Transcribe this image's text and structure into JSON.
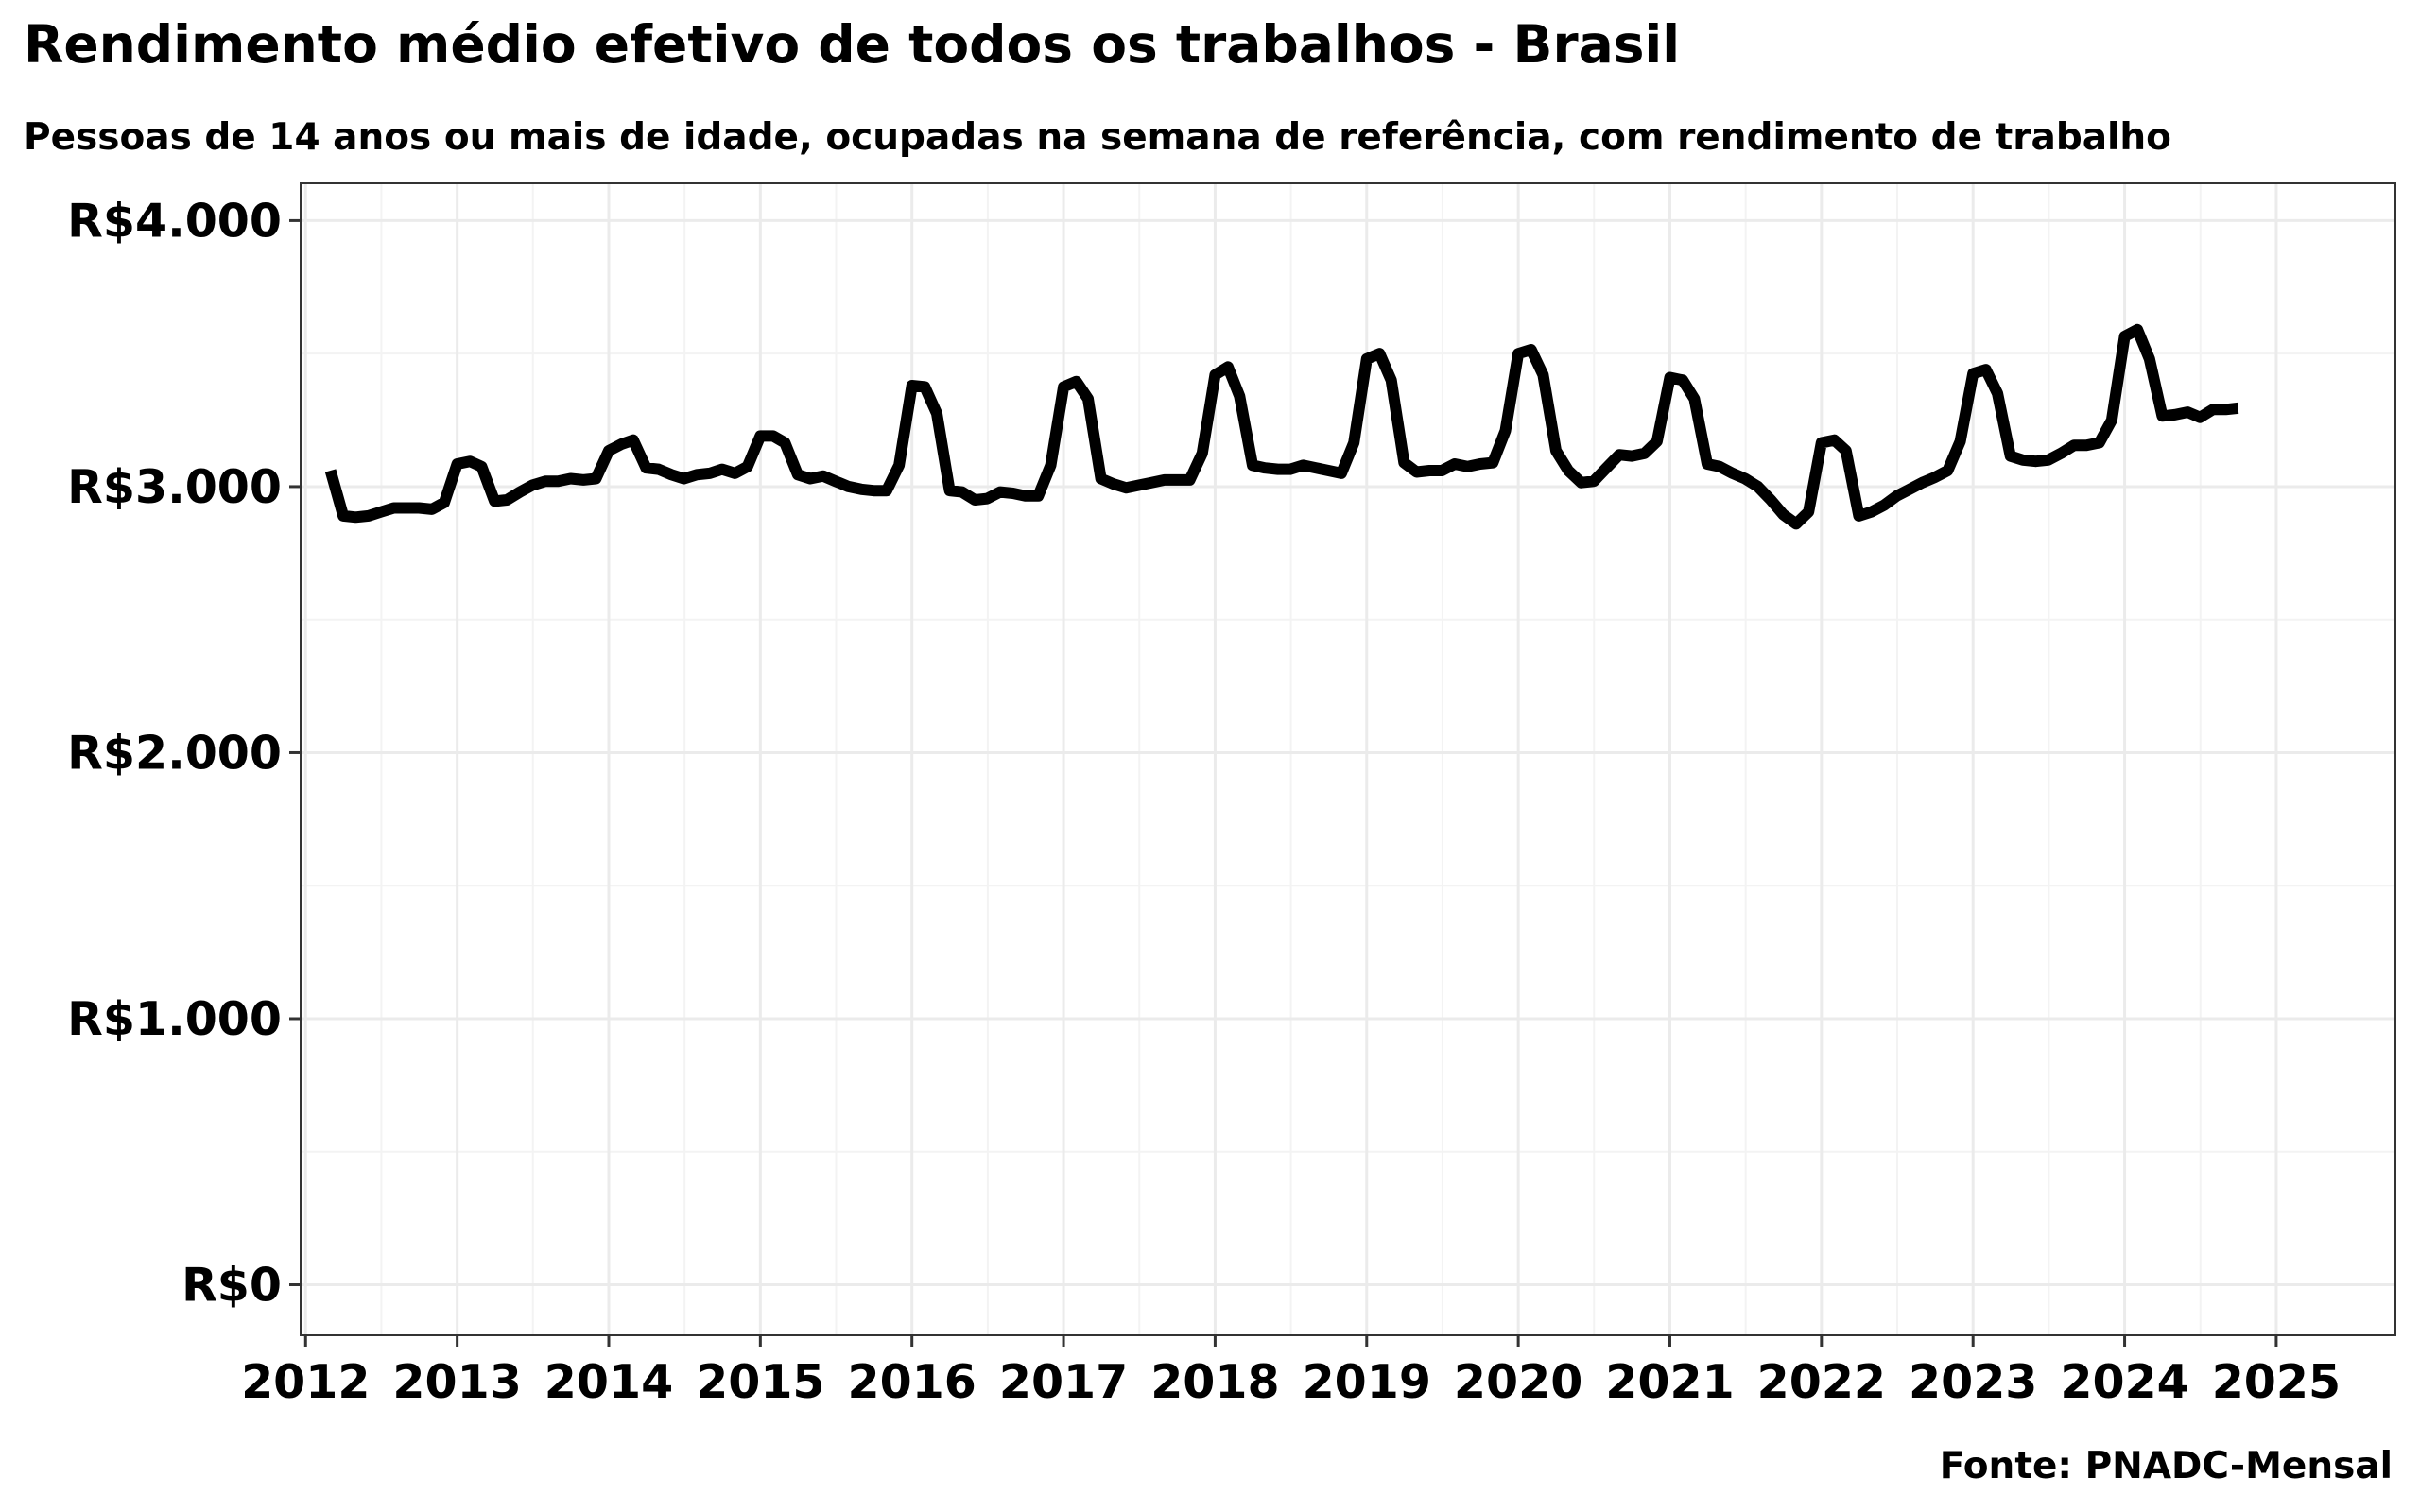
{
  "chart_data": {
    "type": "line",
    "title": "Rendimento médio efetivo de todos os trabalhos - Brasil",
    "subtitle": "Pessoas de 14 anos ou mais de idade, ocupadas na semana de referência, com rendimento de trabalho",
    "caption": "Fonte: PNADC-Mensal",
    "xlabel": "",
    "ylabel": "",
    "x_ticks": [
      "2012",
      "2013",
      "2014",
      "2015",
      "2016",
      "2017",
      "2018",
      "2019",
      "2020",
      "2021",
      "2022",
      "2023",
      "2024",
      "2025"
    ],
    "y_ticks": [
      "R$0",
      "R$1.000",
      "R$2.000",
      "R$3.000",
      "R$4.000"
    ],
    "y_tick_values": [
      0,
      1000,
      2000,
      3000,
      4000
    ],
    "xlim": [
      "2011-12-20",
      "2025-10-15"
    ],
    "ylim": [
      -190,
      4140
    ],
    "grid": true,
    "line_color": "#000000",
    "series": [
      {
        "x": [
          "2012-03",
          "2012-04",
          "2012-05",
          "2012-06",
          "2012-07",
          "2012-08",
          "2012-09",
          "2012-10",
          "2012-11",
          "2012-12",
          "2013-01",
          "2013-02",
          "2013-03",
          "2013-04",
          "2013-05",
          "2013-06",
          "2013-07",
          "2013-08",
          "2013-09",
          "2013-10",
          "2013-11",
          "2013-12",
          "2014-01",
          "2014-02",
          "2014-03",
          "2014-04",
          "2014-05",
          "2014-06",
          "2014-07",
          "2014-08",
          "2014-09",
          "2014-10",
          "2014-11",
          "2014-12",
          "2015-01",
          "2015-02",
          "2015-03",
          "2015-04",
          "2015-05",
          "2015-06",
          "2015-07",
          "2015-08",
          "2015-09",
          "2015-10",
          "2015-11",
          "2015-12",
          "2016-01",
          "2016-02",
          "2016-03",
          "2016-04",
          "2016-05",
          "2016-06",
          "2016-07",
          "2016-08",
          "2016-09",
          "2016-10",
          "2016-11",
          "2016-12",
          "2017-01",
          "2017-02",
          "2017-03",
          "2017-04",
          "2017-05",
          "2017-06",
          "2017-07",
          "2017-08",
          "2017-09",
          "2017-10",
          "2017-11",
          "2017-12",
          "2018-01",
          "2018-02",
          "2018-03",
          "2018-04",
          "2018-05",
          "2018-06",
          "2018-07",
          "2018-08",
          "2018-09",
          "2018-10",
          "2018-11",
          "2018-12",
          "2019-01",
          "2019-02",
          "2019-03",
          "2019-04",
          "2019-05",
          "2019-06",
          "2019-07",
          "2019-08",
          "2019-09",
          "2019-10",
          "2019-11",
          "2019-12",
          "2020-01",
          "2020-02",
          "2020-03",
          "2020-04",
          "2020-05",
          "2020-06",
          "2020-07",
          "2020-08",
          "2020-09",
          "2020-10",
          "2020-11",
          "2020-12",
          "2021-01",
          "2021-02",
          "2021-03",
          "2021-04",
          "2021-05",
          "2021-06",
          "2021-07",
          "2021-08",
          "2021-09",
          "2021-10",
          "2021-11",
          "2021-12",
          "2022-01",
          "2022-02",
          "2022-03",
          "2022-04",
          "2022-05",
          "2022-06",
          "2022-07",
          "2022-08",
          "2022-09",
          "2022-10",
          "2022-11",
          "2022-12",
          "2023-01",
          "2023-02",
          "2023-03",
          "2023-04",
          "2023-05",
          "2023-06",
          "2023-07",
          "2023-08",
          "2023-09",
          "2023-10",
          "2023-11",
          "2023-12",
          "2024-01",
          "2024-02",
          "2024-03",
          "2024-04",
          "2024-05",
          "2024-06",
          "2024-07",
          "2024-08",
          "2024-09",
          "2024-10"
        ],
        "values": [
          3060,
          2890,
          2885,
          2890,
          2905,
          2920,
          2920,
          2920,
          2915,
          2940,
          3085,
          3095,
          3075,
          2945,
          2950,
          2980,
          3005,
          3020,
          3020,
          3030,
          3025,
          3030,
          3135,
          3160,
          3175,
          3070,
          3065,
          3045,
          3030,
          3045,
          3050,
          3065,
          3050,
          3075,
          3190,
          3190,
          3165,
          3045,
          3030,
          3040,
          3020,
          3000,
          2990,
          2985,
          2985,
          3080,
          3380,
          3375,
          3275,
          2985,
          2980,
          2950,
          2955,
          2980,
          2975,
          2965,
          2965,
          3080,
          3375,
          3395,
          3330,
          3030,
          3010,
          2995,
          3005,
          3015,
          3025,
          3025,
          3025,
          3125,
          3420,
          3450,
          3340,
          3080,
          3070,
          3065,
          3065,
          3080,
          3070,
          3060,
          3050,
          3165,
          3480,
          3500,
          3400,
          3090,
          3055,
          3060,
          3060,
          3085,
          3075,
          3085,
          3090,
          3210,
          3500,
          3515,
          3420,
          3135,
          3060,
          3015,
          3020,
          3070,
          3120,
          3115,
          3125,
          3170,
          3410,
          3400,
          3330,
          3085,
          3075,
          3050,
          3030,
          3000,
          2950,
          2895,
          2860,
          2905,
          3165,
          3175,
          3135,
          2890,
          2905,
          2930,
          2965,
          2990,
          3015,
          3035,
          3060,
          3170,
          3425,
          3440,
          3350,
          3115,
          3100,
          3095,
          3100,
          3125,
          3155,
          3155,
          3165,
          3250,
          3565,
          3590,
          3480,
          3265,
          3270,
          3280,
          3260,
          3290,
          3290,
          3295
        ]
      }
    ]
  }
}
